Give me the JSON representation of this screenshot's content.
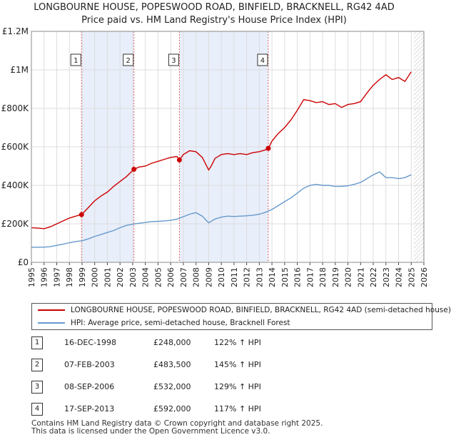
{
  "header": {
    "title_line1": "LONGBOURNE HOUSE, POPESWOOD ROAD, BINFIELD, BRACKNELL, RG42 4AD",
    "title_line2": "Price paid vs. HM Land Registry's House Price Index (HPI)"
  },
  "chart_data": {
    "type": "line",
    "title": "Price paid vs. HM Land Registry's House Price Index (HPI)",
    "xlim": [
      1995,
      2026
    ],
    "ylim": [
      0,
      1200000
    ],
    "x_ticks": [
      "1995",
      "1996",
      "1997",
      "1998",
      "1999",
      "2000",
      "2001",
      "2002",
      "2003",
      "2004",
      "2005",
      "2006",
      "2007",
      "2008",
      "2009",
      "2010",
      "2011",
      "2012",
      "2013",
      "2014",
      "2015",
      "2016",
      "2017",
      "2018",
      "2019",
      "2020",
      "2021",
      "2022",
      "2023",
      "2024",
      "2025",
      "2026"
    ],
    "y_ticks": [
      {
        "value": 0,
        "label": "£0"
      },
      {
        "value": 200000,
        "label": "£200K"
      },
      {
        "value": 400000,
        "label": "£400K"
      },
      {
        "value": 600000,
        "label": "£600K"
      },
      {
        "value": 800000,
        "label": "£800K"
      },
      {
        "value": 1000000,
        "label": "£1M"
      },
      {
        "value": 1200000,
        "label": "£1.2M"
      }
    ],
    "shaded_ranges": [
      [
        1998.96,
        2003.1
      ],
      [
        2006.69,
        2013.71
      ]
    ],
    "forecast_start": 2025.2,
    "colors": {
      "property": "#cc0000",
      "hpi": "#6699cc",
      "shade": "#e8eefa",
      "vline": "#e06666",
      "grid": "#dddddd"
    },
    "series": [
      {
        "name": "LONGBOURNE HOUSE, POPESWOOD ROAD, BINFIELD, BRACKNELL, RG42 4AD (semi-detached house)",
        "x": [
          1995.0,
          1995.5,
          1996.0,
          1996.5,
          1997.0,
          1997.5,
          1998.0,
          1998.5,
          1998.96,
          1999.5,
          2000.0,
          2000.5,
          2001.0,
          2001.5,
          2002.0,
          2002.5,
          2003.1,
          2003.5,
          2004.0,
          2004.5,
          2005.0,
          2005.5,
          2006.0,
          2006.5,
          2006.69,
          2007.0,
          2007.5,
          2008.0,
          2008.5,
          2009.0,
          2009.2,
          2009.5,
          2010.0,
          2010.5,
          2011.0,
          2011.5,
          2012.0,
          2012.5,
          2013.0,
          2013.5,
          2013.71,
          2014.0,
          2014.5,
          2015.0,
          2015.5,
          2016.0,
          2016.5,
          2017.0,
          2017.5,
          2018.0,
          2018.5,
          2019.0,
          2019.5,
          2020.0,
          2020.5,
          2021.0,
          2021.5,
          2022.0,
          2022.5,
          2023.0,
          2023.5,
          2024.0,
          2024.5,
          2025.0
        ],
        "y": [
          180000,
          178000,
          175000,
          185000,
          200000,
          215000,
          230000,
          240000,
          248000,
          285000,
          320000,
          345000,
          365000,
          395000,
          420000,
          445000,
          483500,
          495000,
          500000,
          515000,
          525000,
          535000,
          545000,
          550000,
          532000,
          560000,
          580000,
          575000,
          545000,
          480000,
          500000,
          540000,
          560000,
          565000,
          560000,
          565000,
          560000,
          570000,
          575000,
          585000,
          592000,
          630000,
          670000,
          700000,
          740000,
          790000,
          845000,
          840000,
          830000,
          835000,
          820000,
          825000,
          805000,
          820000,
          825000,
          835000,
          880000,
          920000,
          950000,
          975000,
          950000,
          960000,
          940000,
          990000
        ]
      },
      {
        "name": "HPI: Average price, semi-detached house, Bracknell Forest",
        "x": [
          1995.0,
          1995.5,
          1996.0,
          1996.5,
          1997.0,
          1997.5,
          1998.0,
          1998.5,
          1999.0,
          1999.5,
          2000.0,
          2000.5,
          2001.0,
          2001.5,
          2002.0,
          2002.5,
          2003.0,
          2003.5,
          2004.0,
          2004.5,
          2005.0,
          2005.5,
          2006.0,
          2006.5,
          2007.0,
          2007.5,
          2008.0,
          2008.5,
          2009.0,
          2009.5,
          2010.0,
          2010.5,
          2011.0,
          2011.5,
          2012.0,
          2012.5,
          2013.0,
          2013.5,
          2014.0,
          2014.5,
          2015.0,
          2015.5,
          2016.0,
          2016.5,
          2017.0,
          2017.5,
          2018.0,
          2018.5,
          2019.0,
          2019.5,
          2020.0,
          2020.5,
          2021.0,
          2021.5,
          2022.0,
          2022.5,
          2023.0,
          2023.5,
          2024.0,
          2024.5,
          2025.0
        ],
        "y": [
          78000,
          79000,
          79000,
          82000,
          88000,
          95000,
          102000,
          108000,
          112000,
          122000,
          135000,
          145000,
          155000,
          165000,
          180000,
          192000,
          198000,
          203000,
          207000,
          212000,
          213000,
          215000,
          218000,
          225000,
          237000,
          250000,
          258000,
          240000,
          205000,
          225000,
          235000,
          240000,
          238000,
          240000,
          242000,
          245000,
          250000,
          260000,
          275000,
          295000,
          315000,
          335000,
          360000,
          385000,
          400000,
          405000,
          400000,
          400000,
          395000,
          395000,
          398000,
          405000,
          415000,
          435000,
          455000,
          470000,
          440000,
          440000,
          435000,
          440000,
          455000
        ]
      }
    ],
    "sale_markers": [
      {
        "label": "1",
        "x": 1998.96,
        "y": 248000
      },
      {
        "label": "2",
        "x": 2003.1,
        "y": 483500
      },
      {
        "label": "3",
        "x": 2006.69,
        "y": 532000
      },
      {
        "label": "4",
        "x": 2013.71,
        "y": 592000
      }
    ]
  },
  "legend": {
    "property_label": "LONGBOURNE HOUSE, POPESWOOD ROAD, BINFIELD, BRACKNELL, RG42 4AD (semi-detached house)",
    "hpi_label": "HPI: Average price, semi-detached house, Bracknell Forest"
  },
  "sales": [
    {
      "num": "1",
      "date": "16-DEC-1998",
      "price": "£248,000",
      "hpi": "122% ↑ HPI"
    },
    {
      "num": "2",
      "date": "07-FEB-2003",
      "price": "£483,500",
      "hpi": "145% ↑ HPI"
    },
    {
      "num": "3",
      "date": "08-SEP-2006",
      "price": "£532,000",
      "hpi": "129% ↑ HPI"
    },
    {
      "num": "4",
      "date": "17-SEP-2013",
      "price": "£592,000",
      "hpi": "117% ↑ HPI"
    }
  ],
  "footer": {
    "line1": "Contains HM Land Registry data © Crown copyright and database right 2025.",
    "line2": "This data is licensed under the Open Government Licence v3.0."
  }
}
